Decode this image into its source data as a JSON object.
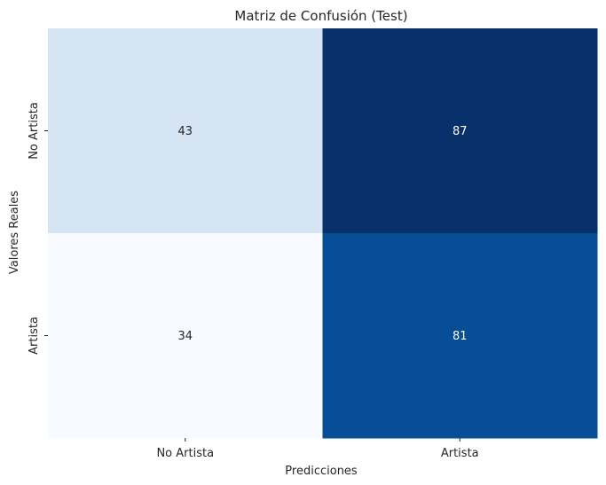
{
  "chart_data": {
    "type": "heatmap",
    "title": "Matriz de Confusión (Test)",
    "xlabel": "Predicciones",
    "ylabel": "Valores Reales",
    "x_categories": [
      "No Artista",
      "Artista"
    ],
    "y_categories": [
      "No Artista",
      "Artista"
    ],
    "values": [
      [
        43,
        87
      ],
      [
        34,
        81
      ]
    ],
    "colormap": "Blues",
    "colorbar": false,
    "grid": false
  }
}
